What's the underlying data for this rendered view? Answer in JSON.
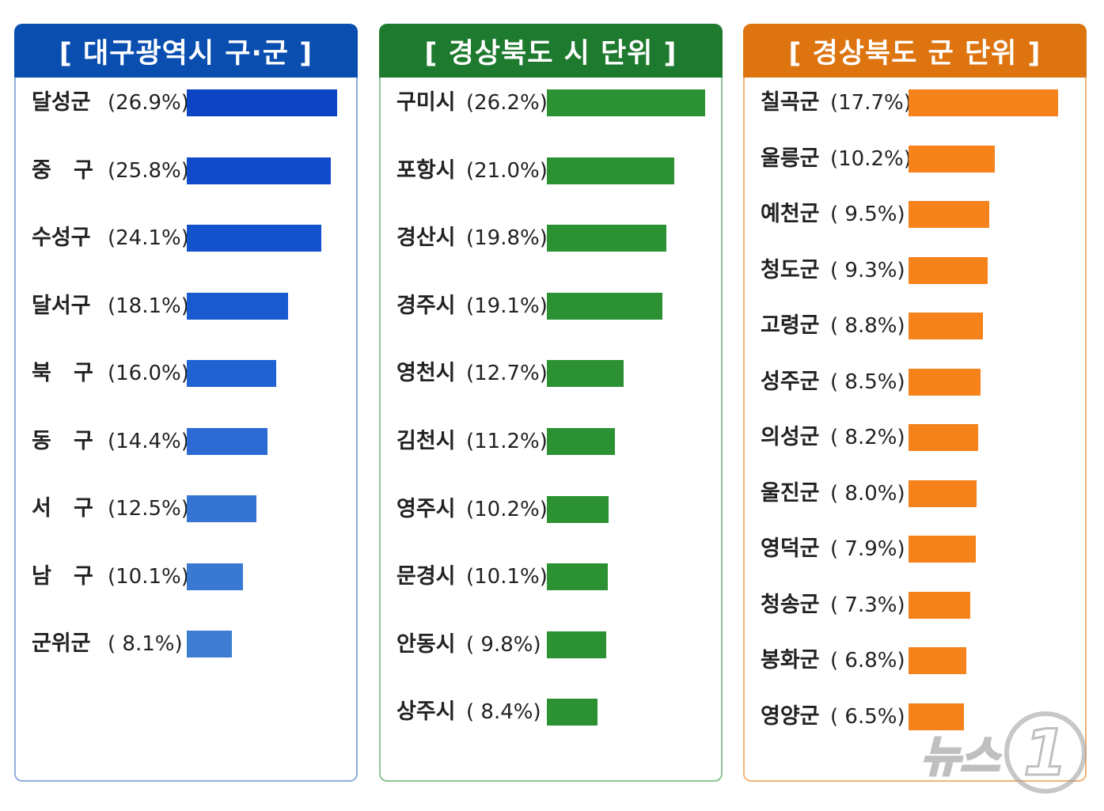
{
  "panels": [
    {
      "title": "[ 대구광역시 구·군 ]",
      "header_color": "#0a4fb0",
      "border_color": "#8fb0dc",
      "items": [
        {
          "label": "달성군",
          "value_text": "(26.9%)",
          "value": 26.9,
          "color": "#0c44c4"
        },
        {
          "label": "중   구",
          "value_text": "(25.8%)",
          "value": 25.8,
          "color": "#0f4ac8"
        },
        {
          "label": "수성구",
          "value_text": "(24.1%)",
          "value": 24.1,
          "color": "#1452cc"
        },
        {
          "label": "달서구",
          "value_text": "(18.1%)",
          "value": 18.1,
          "color": "#1a5ad0"
        },
        {
          "label": "북   구",
          "value_text": "(16.0%)",
          "value": 16.0,
          "color": "#2062d2"
        },
        {
          "label": "동   구",
          "value_text": "(14.4%)",
          "value": 14.4,
          "color": "#2a6ad2"
        },
        {
          "label": "서   구",
          "value_text": "(12.5%)",
          "value": 12.5,
          "color": "#3574d2"
        },
        {
          "label": "남   구",
          "value_text": "(10.1%)",
          "value": 10.1,
          "color": "#3a79d2"
        },
        {
          "label": "군위군",
          "value_text": "( 8.1%)",
          "value": 8.1,
          "color": "#3d7cd0"
        }
      ]
    },
    {
      "title": "[ 경상북도 시 단위 ]",
      "header_color": "#1e7a2e",
      "border_color": "#8cc494",
      "items": [
        {
          "label": "구미시",
          "value_text": "(26.2%)",
          "value": 26.2,
          "color": "#2b9133"
        },
        {
          "label": "포항시",
          "value_text": "(21.0%)",
          "value": 21.0,
          "color": "#2b9133"
        },
        {
          "label": "경산시",
          "value_text": "(19.8%)",
          "value": 19.8,
          "color": "#2b9133"
        },
        {
          "label": "경주시",
          "value_text": "(19.1%)",
          "value": 19.1,
          "color": "#2b9133"
        },
        {
          "label": "영천시",
          "value_text": "(12.7%)",
          "value": 12.7,
          "color": "#2b9133"
        },
        {
          "label": "김천시",
          "value_text": "(11.2%)",
          "value": 11.2,
          "color": "#2b9133"
        },
        {
          "label": "영주시",
          "value_text": "(10.2%)",
          "value": 10.2,
          "color": "#2b9133"
        },
        {
          "label": "문경시",
          "value_text": "(10.1%)",
          "value": 10.1,
          "color": "#2b9133"
        },
        {
          "label": "안동시",
          "value_text": "( 9.8%)",
          "value": 9.8,
          "color": "#2b9133"
        },
        {
          "label": "상주시",
          "value_text": "( 8.4%)",
          "value": 8.4,
          "color": "#2b9133"
        }
      ]
    },
    {
      "title": "[ 경상북도 군 단위 ]",
      "header_color": "#dd7410",
      "border_color": "#f0b47a",
      "items": [
        {
          "label": "칠곡군",
          "value_text": "(17.7%)",
          "value": 17.7,
          "color": "#f5821a"
        },
        {
          "label": "울릉군",
          "value_text": "(10.2%)",
          "value": 10.2,
          "color": "#f5821a"
        },
        {
          "label": "예천군",
          "value_text": "( 9.5%)",
          "value": 9.5,
          "color": "#f5821a"
        },
        {
          "label": "청도군",
          "value_text": "( 9.3%)",
          "value": 9.3,
          "color": "#f5821a"
        },
        {
          "label": "고령군",
          "value_text": "( 8.8%)",
          "value": 8.8,
          "color": "#f5821a"
        },
        {
          "label": "성주군",
          "value_text": "( 8.5%)",
          "value": 8.5,
          "color": "#f5821a"
        },
        {
          "label": "의성군",
          "value_text": "( 8.2%)",
          "value": 8.2,
          "color": "#f5821a"
        },
        {
          "label": "울진군",
          "value_text": "( 8.0%)",
          "value": 8.0,
          "color": "#f5821a"
        },
        {
          "label": "영덕군",
          "value_text": "( 7.9%)",
          "value": 7.9,
          "color": "#f5821a"
        },
        {
          "label": "청송군",
          "value_text": "( 7.3%)",
          "value": 7.3,
          "color": "#f5821a"
        },
        {
          "label": "봉화군",
          "value_text": "( 6.8%)",
          "value": 6.8,
          "color": "#f5821a"
        },
        {
          "label": "영양군",
          "value_text": "( 6.5%)",
          "value": 6.5,
          "color": "#f5821a"
        }
      ]
    }
  ],
  "chart_data": [
    {
      "type": "bar",
      "title": "[ 대구광역시 구·군 ]",
      "categories": [
        "달성군",
        "중 구",
        "수성구",
        "달서구",
        "북 구",
        "동 구",
        "서 구",
        "남 구",
        "군위군"
      ],
      "values": [
        26.9,
        25.8,
        24.1,
        18.1,
        16.0,
        14.4,
        12.5,
        10.1,
        8.1
      ]
    },
    {
      "type": "bar",
      "title": "[ 경상북도 시 단위 ]",
      "categories": [
        "구미시",
        "포항시",
        "경산시",
        "경주시",
        "영천시",
        "김천시",
        "영주시",
        "문경시",
        "안동시",
        "상주시"
      ],
      "values": [
        26.2,
        21.0,
        19.8,
        19.1,
        12.7,
        11.2,
        10.2,
        10.1,
        9.8,
        8.4
      ]
    },
    {
      "type": "bar",
      "title": "[ 경상북도 군 단위 ]",
      "categories": [
        "칠곡군",
        "울릉군",
        "예천군",
        "청도군",
        "고령군",
        "성주군",
        "의성군",
        "울진군",
        "영덕군",
        "청송군",
        "봉화군",
        "영양군"
      ],
      "values": [
        17.7,
        10.2,
        9.5,
        9.3,
        8.8,
        8.5,
        8.2,
        8.0,
        7.9,
        7.3,
        6.8,
        6.5
      ]
    }
  ],
  "watermark": {
    "text": "뉴스",
    "mark": "1"
  }
}
